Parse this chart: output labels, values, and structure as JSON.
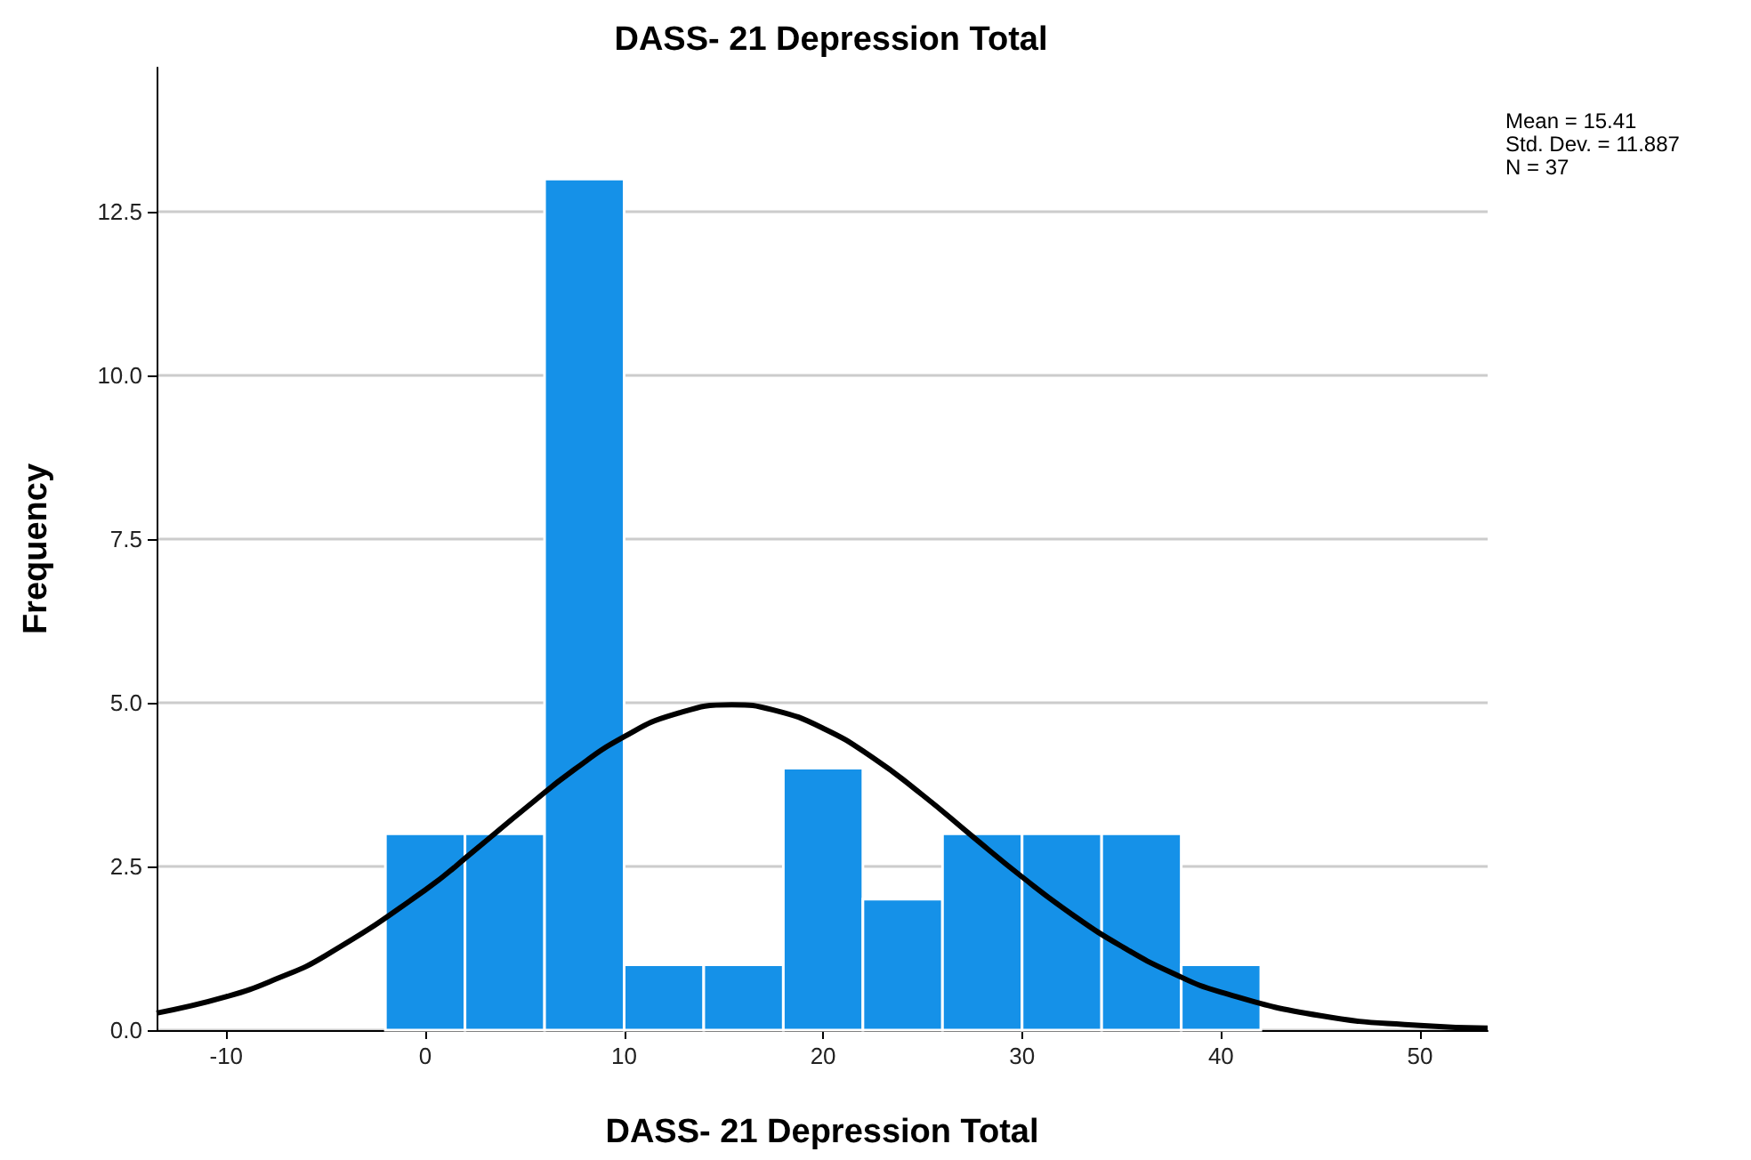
{
  "chart_data": {
    "type": "histogram",
    "title": "DASS- 21 Depression Total",
    "xlabel": "DASS- 21 Depression Total",
    "ylabel": "Frequency",
    "bins": [
      -2,
      2,
      6,
      10,
      14,
      18,
      22,
      26,
      30,
      34,
      38,
      42
    ],
    "values": [
      3,
      3,
      13,
      1,
      1,
      4,
      2,
      3,
      3,
      3,
      1
    ],
    "color": "#1591e8",
    "series": [
      {
        "type": "line",
        "color": "#000000",
        "x": [
          -13.5,
          -10,
          -7.5,
          -5,
          0,
          2.5,
          5,
          7.5,
          10,
          12.5,
          15.41,
          17.5,
          20,
          22.5,
          25,
          27.5,
          30,
          32.5,
          35,
          37.5,
          40,
          45,
          50,
          53.4
        ],
        "values": [
          0.26,
          0.51,
          0.78,
          1.14,
          2.14,
          2.75,
          3.38,
          3.98,
          4.48,
          4.82,
          4.97,
          4.89,
          4.61,
          4.16,
          3.59,
          2.96,
          2.34,
          1.77,
          1.28,
          0.88,
          0.58,
          0.22,
          0.07,
          0.03
        ]
      }
    ],
    "xlim": [
      -13.5,
      53.4
    ],
    "xticks": [
      -10,
      0,
      10,
      20,
      30,
      40,
      50
    ],
    "ylim": [
      0,
      14.7
    ],
    "yticks": [
      {
        "value": 0,
        "label": "0.0"
      },
      {
        "value": 2.5,
        "label": "2.5"
      },
      {
        "value": 5,
        "label": "5.0"
      },
      {
        "value": 7.5,
        "label": "7.5"
      },
      {
        "value": 10,
        "label": "10.0"
      },
      {
        "value": 12.5,
        "label": "12.5"
      }
    ],
    "grid": "y",
    "marker": "none",
    "line_style": "solid",
    "annotations": [
      "Mean = 15.41",
      "Std. Dev. = 11.887",
      "N = 37"
    ]
  }
}
